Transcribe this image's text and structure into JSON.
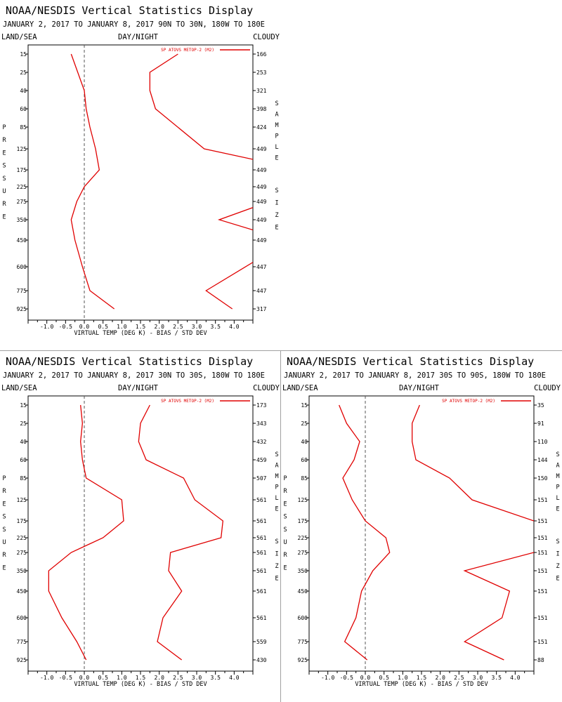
{
  "display_title": "NOAA/NESDIS Vertical Statistics Display",
  "period": "JANUARY 2, 2017 TO JANUARY 8, 2017",
  "labels": {
    "land_sea": "LAND/SEA",
    "day_night": "DAY/NIGHT",
    "cloudy": "CLOUDY",
    "pressure_letters": [
      "P",
      "R",
      "E",
      "S",
      "S",
      "U",
      "R",
      "E"
    ],
    "sample_letters": [
      "S",
      "A",
      "M",
      "P",
      "L",
      "E"
    ],
    "size_letters": [
      "S",
      "I",
      "Z",
      "E"
    ],
    "xlabel": "VIRTUAL TEMP (DEG K) - BIAS / STD DEV",
    "legend": "SP ATOVS METOP-2 (M2)"
  },
  "colors": {
    "series": "#e00000",
    "axis": "#000000",
    "zero_line": "#555555",
    "separator": "#a0a0a0"
  },
  "chart_data": [
    {
      "type": "line",
      "region": "90N TO 30N, 180W TO 180E",
      "pressure_levels": [
        15,
        25,
        40,
        60,
        85,
        125,
        175,
        225,
        275,
        350,
        450,
        600,
        775,
        925
      ],
      "sample_size": [
        "166",
        "253",
        "321",
        "398",
        "424",
        "449",
        "449",
        "449",
        "449",
        "449",
        "449",
        "447",
        "447",
        "317"
      ],
      "xlim": [
        -1.5,
        4.5
      ],
      "xticks": [
        "-1.0",
        "-0.5",
        "0.0",
        "0.5",
        "1.0",
        "1.5",
        "2.0",
        "2.5",
        "3.0",
        "3.5",
        "4.0"
      ],
      "series": [
        {
          "name": "bias",
          "values": [
            -0.35,
            0.0,
            0.05,
            0.15,
            0.3,
            0.4,
            0.0,
            -0.2,
            -0.35,
            -0.25,
            -0.05,
            0.15,
            0.8
          ]
        },
        {
          "name": "std_dev",
          "values": [
            2.5,
            1.75,
            1.75,
            1.9,
            3.2,
            4.5,
            null,
            null,
            null,
            3.6,
            4.5,
            null,
            3.25,
            3.95
          ]
        }
      ],
      "bias_levels": [
        15,
        40,
        60,
        85,
        125,
        175,
        225,
        275,
        350,
        450,
        600,
        775,
        925
      ],
      "std_points": [
        [
          2.5,
          15
        ],
        [
          1.75,
          25
        ],
        [
          1.75,
          40
        ],
        [
          1.9,
          60
        ],
        [
          3.2,
          125
        ],
        [
          4.5,
          150
        ]
      ],
      "std_segments": [
        [
          [
            2.5,
            15
          ],
          [
            1.75,
            25
          ],
          [
            1.75,
            40
          ],
          [
            1.9,
            60
          ],
          [
            3.2,
            125
          ],
          [
            4.5,
            150
          ]
        ],
        [
          [
            4.5,
            300
          ],
          [
            3.6,
            350
          ],
          [
            4.5,
            400
          ]
        ],
        [
          [
            4.5,
            575
          ],
          [
            3.25,
            775
          ],
          [
            3.95,
            925
          ]
        ]
      ]
    },
    {
      "type": "line",
      "region": "30N TO 30S, 180W TO 180E",
      "pressure_levels": [
        15,
        25,
        40,
        60,
        85,
        125,
        175,
        225,
        275,
        350,
        450,
        600,
        775,
        925
      ],
      "sample_size": [
        "173",
        "343",
        "432",
        "459",
        "507",
        "561",
        "561",
        "561",
        "561",
        "561",
        "561",
        "561",
        "559",
        "430"
      ],
      "xlim": [
        -1.5,
        4.5
      ],
      "xticks": [
        "-1.0",
        "-0.5",
        "0.0",
        "0.5",
        "1.0",
        "1.5",
        "2.0",
        "2.5",
        "3.0",
        "3.5",
        "4.0"
      ],
      "series": [
        {
          "name": "bias",
          "values": [
            -0.1,
            -0.05,
            -0.1,
            -0.05,
            0.05,
            1.0,
            1.05,
            0.5,
            -0.35,
            -0.95,
            -0.95,
            -0.6,
            -0.2,
            0.05
          ]
        },
        {
          "name": "std_dev",
          "values": [
            1.75,
            1.5,
            1.45,
            1.65,
            2.65,
            2.95,
            3.7,
            3.65,
            2.3,
            2.25,
            2.6,
            2.1,
            1.95,
            2.6
          ]
        }
      ]
    },
    {
      "type": "line",
      "region": "30S TO 90S, 180W TO 180E",
      "pressure_levels": [
        15,
        25,
        40,
        60,
        85,
        125,
        175,
        225,
        275,
        350,
        450,
        600,
        775,
        925
      ],
      "sample_size": [
        "35",
        "91",
        "110",
        "144",
        "150",
        "151",
        "151",
        "151",
        "151",
        "151",
        "151",
        "151",
        "151",
        "88"
      ],
      "xlim": [
        -1.5,
        4.5
      ],
      "xticks": [
        "-1.0",
        "-0.5",
        "0.0",
        "0.5",
        "1.0",
        "1.5",
        "2.0",
        "2.5",
        "3.0",
        "3.5",
        "4.0"
      ],
      "series": [
        {
          "name": "bias",
          "values": [
            -0.7,
            -0.5,
            -0.15,
            -0.3,
            -0.6,
            -0.35,
            0.0,
            0.55,
            0.65,
            0.2,
            -0.1,
            -0.25,
            -0.55,
            0.05
          ]
        },
        {
          "name": "std_dev",
          "values": [
            1.45,
            1.25,
            1.25,
            1.35,
            2.25,
            2.85,
            4.5,
            null,
            4.5,
            2.65,
            3.85,
            3.65,
            2.65,
            3.7
          ]
        }
      ]
    }
  ]
}
